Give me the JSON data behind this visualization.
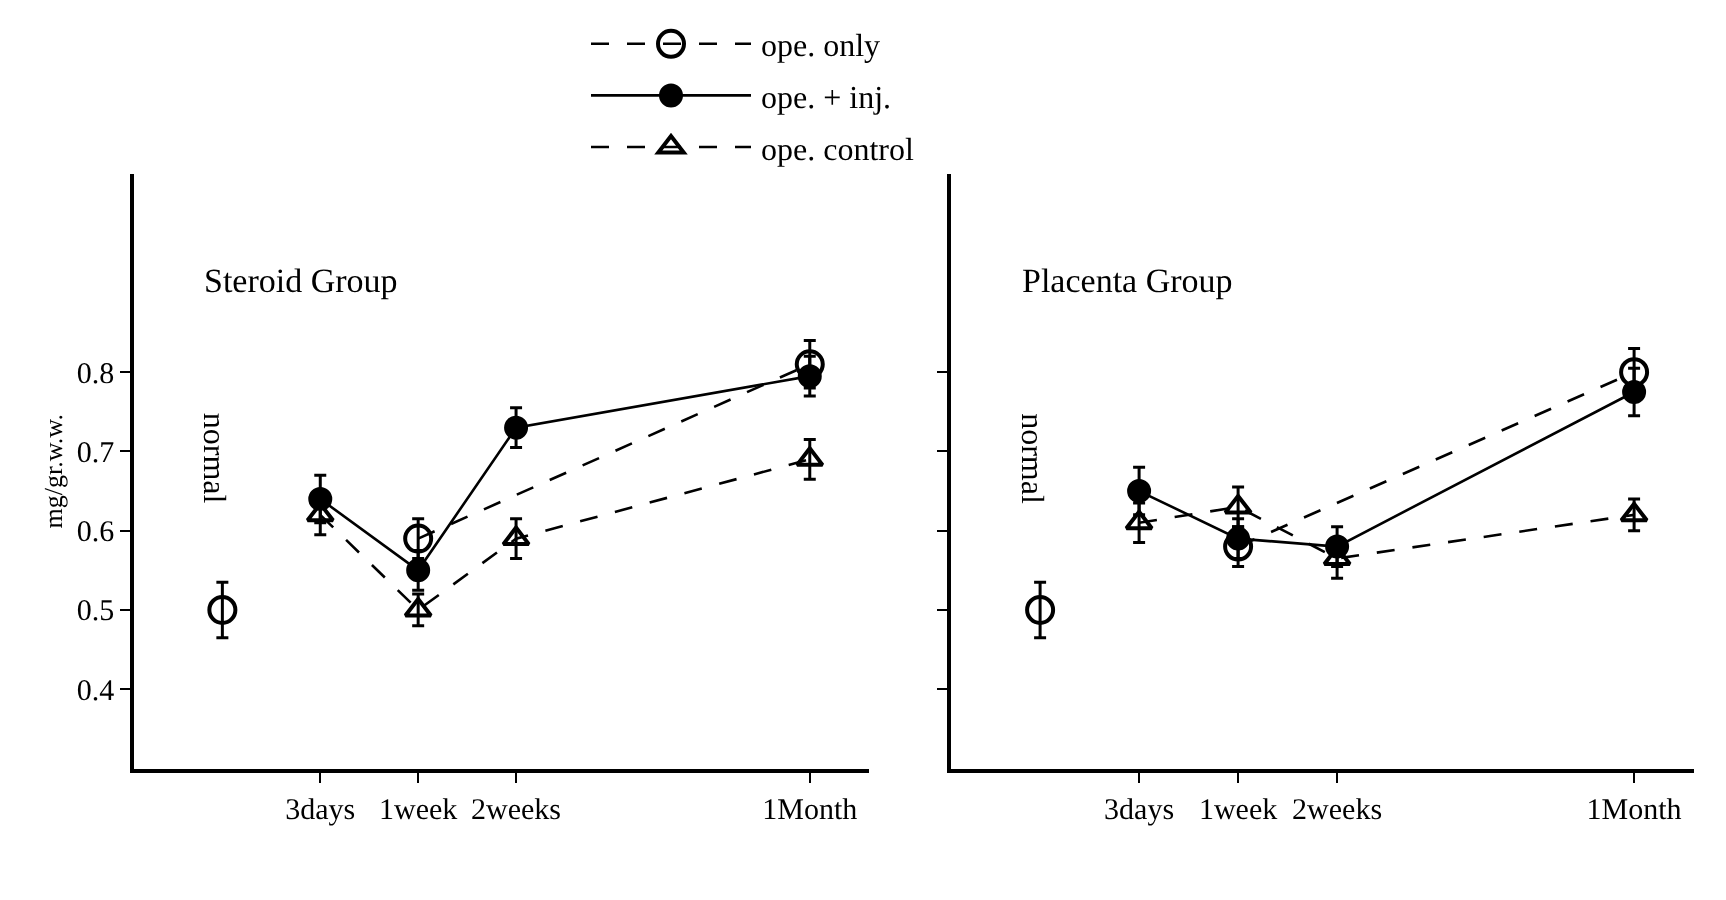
{
  "chart_data": [
    {
      "type": "line",
      "title": "Steroid Group",
      "ylabel": "mg/gr.w.w.",
      "legend": "top",
      "categories": [
        null,
        "3days",
        "1week",
        "2weeks",
        null,
        null,
        "1Month"
      ],
      "ylim": [
        0.3,
        1.05
      ],
      "yticks": [
        0.4,
        0.5,
        0.6,
        0.7,
        0.8
      ],
      "annotations": [
        "normal"
      ],
      "series": [
        {
          "name": "ope. only",
          "color": "#000000",
          "marker": "circle",
          "line_style": "dashed",
          "values": [
            null,
            null,
            0.59,
            null,
            null,
            null,
            0.81
          ],
          "errors": [
            null,
            null,
            0.025,
            null,
            null,
            null,
            0.03
          ]
        },
        {
          "name": "ope. + inj.",
          "color": "#000000",
          "marker": "circle",
          "line_style": "solid",
          "values": [
            null,
            0.64,
            0.55,
            0.73,
            null,
            null,
            0.795
          ],
          "errors": [
            null,
            0.03,
            0.025,
            0.025,
            null,
            null,
            0.025
          ]
        },
        {
          "name": "ope. control",
          "color": "#000000",
          "marker": "triangle",
          "line_style": "dashed",
          "values": [
            null,
            0.62,
            0.5,
            0.59,
            null,
            null,
            0.69
          ],
          "errors": [
            null,
            0.025,
            0.02,
            0.025,
            null,
            null,
            0.025
          ]
        },
        {
          "color": "#000000",
          "type": "scatter",
          "marker": "circle",
          "values": [
            0.5,
            null,
            null,
            null,
            null,
            null,
            null
          ],
          "errors": [
            0.035,
            null,
            null,
            null,
            null,
            null,
            null
          ]
        }
      ]
    },
    {
      "type": "line",
      "title": "Placenta Group",
      "tick_labels": "x",
      "categories": [
        null,
        "3days",
        "1week",
        "2weeks",
        null,
        null,
        "1Month"
      ],
      "ylim": [
        0.3,
        1.05
      ],
      "yticks": [
        {
          "value": 0.4,
          "label": null
        },
        {
          "value": 0.5,
          "label": null
        },
        {
          "value": 0.6,
          "label": null
        },
        {
          "value": 0.7,
          "label": null
        },
        {
          "value": 0.8,
          "label": null
        }
      ],
      "annotations": [
        "normal"
      ],
      "series": [
        {
          "color": "#000000",
          "marker": "circle",
          "line_style": "dashed",
          "values": [
            null,
            null,
            0.58,
            null,
            null,
            null,
            0.8
          ],
          "errors": [
            null,
            null,
            0.025,
            null,
            null,
            null,
            0.03
          ]
        },
        {
          "color": "#000000",
          "marker": "circle",
          "line_style": "solid",
          "values": [
            null,
            0.65,
            0.59,
            0.58,
            null,
            null,
            0.775
          ],
          "errors": [
            null,
            0.03,
            0.025,
            0.025,
            null,
            null,
            0.03
          ]
        },
        {
          "color": "#000000",
          "marker": "triangle",
          "line_style": "dashed",
          "values": [
            null,
            0.61,
            0.63,
            0.565,
            null,
            null,
            0.62
          ],
          "errors": [
            null,
            0.025,
            0.025,
            0.025,
            null,
            null,
            0.02
          ]
        },
        {
          "color": "#000000",
          "type": "scatter",
          "marker": "circle",
          "values": [
            0.5,
            null,
            null,
            null,
            null,
            null,
            null
          ],
          "errors": [
            0.035,
            null,
            null,
            null,
            null,
            null,
            null
          ]
        }
      ]
    }
  ]
}
